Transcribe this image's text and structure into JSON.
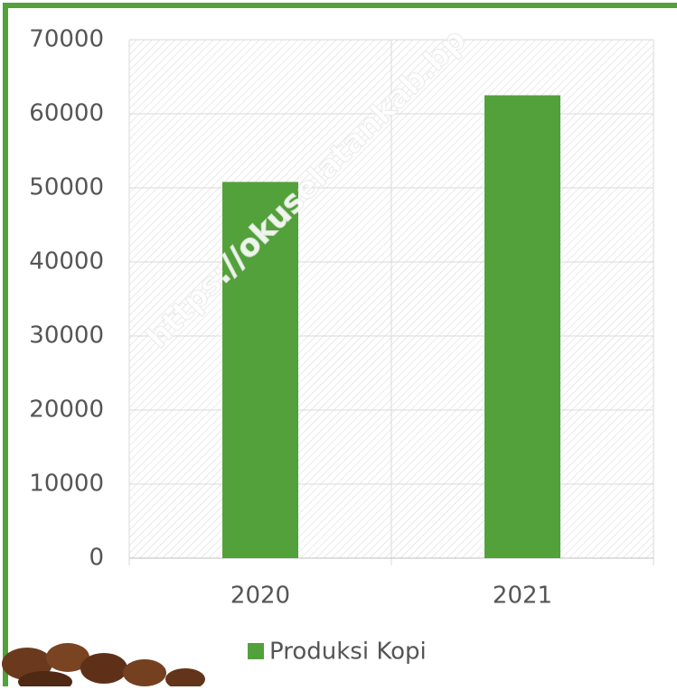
{
  "chart_data": {
    "type": "bar",
    "categories": [
      "2020",
      "2021"
    ],
    "series": [
      {
        "name": "Produksi Kopi",
        "color": "#52a13b",
        "values": [
          50800,
          62500
        ]
      }
    ],
    "ylim": [
      0,
      70000
    ],
    "yticks": [
      0,
      10000,
      20000,
      30000,
      40000,
      50000,
      60000,
      70000
    ],
    "grid": true,
    "legend": "bottom",
    "watermark": "https://okuselatankab.bp"
  }
}
